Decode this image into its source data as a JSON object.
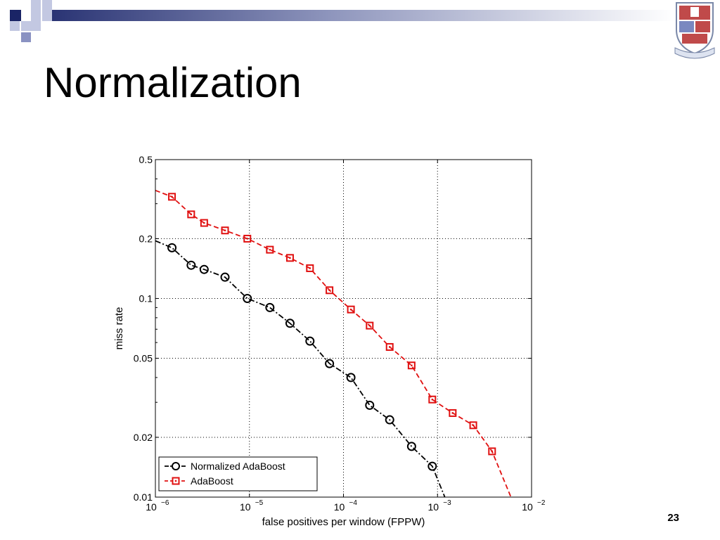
{
  "slide": {
    "title": "Normalization",
    "page_number": "23",
    "accent_color": "#1a2466",
    "deco_icon": "checker-squares-icon",
    "crest_icon": "university-crest-icon"
  },
  "chart_data": {
    "type": "line",
    "xlabel": "false positives per window (FPPW)",
    "ylabel": "miss rate",
    "xscale": "log",
    "yscale": "log",
    "xlim": [
      1e-06,
      0.01
    ],
    "ylim": [
      0.01,
      0.5
    ],
    "x_ticks": [
      {
        "value": 1e-06,
        "base": "10",
        "exp": "−6"
      },
      {
        "value": 1e-05,
        "base": "10",
        "exp": "−5"
      },
      {
        "value": 0.0001,
        "base": "10",
        "exp": "−4"
      },
      {
        "value": 0.001,
        "base": "10",
        "exp": "−3"
      },
      {
        "value": 0.01,
        "base": "10",
        "exp": "−2"
      }
    ],
    "y_ticks": [
      {
        "value": 0.01,
        "label": "0.01"
      },
      {
        "value": 0.02,
        "label": "0.02"
      },
      {
        "value": 0.05,
        "label": "0.05"
      },
      {
        "value": 0.1,
        "label": "0.1"
      },
      {
        "value": 0.2,
        "label": "0.2"
      },
      {
        "value": 0.5,
        "label": "0.5"
      }
    ],
    "grid": true,
    "legend_position": "bottom-left",
    "series": [
      {
        "name": "Normalized AdaBoost",
        "color": "#000000",
        "marker": "circle",
        "line_style": "dash-dot",
        "line_x": [
          1e-06,
          1.5e-06,
          2.4e-06,
          3.3e-06,
          5.5e-06,
          9.5e-06,
          1.65e-05,
          2.7e-05,
          4.4e-05,
          7.1e-05,
          0.00012,
          0.00019,
          0.00031,
          0.00053,
          0.00088,
          0.00125
        ],
        "line_y": [
          0.195,
          0.18,
          0.147,
          0.14,
          0.128,
          0.1,
          0.09,
          0.075,
          0.061,
          0.047,
          0.04,
          0.029,
          0.0245,
          0.018,
          0.0143,
          0.0095
        ],
        "x": [
          1.5e-06,
          2.4e-06,
          3.3e-06,
          5.5e-06,
          9.5e-06,
          1.65e-05,
          2.7e-05,
          4.4e-05,
          7.1e-05,
          0.00012,
          0.00019,
          0.00031,
          0.00053,
          0.00088
        ],
        "y": [
          0.18,
          0.147,
          0.14,
          0.128,
          0.1,
          0.09,
          0.075,
          0.061,
          0.047,
          0.04,
          0.029,
          0.0245,
          0.018,
          0.0143
        ]
      },
      {
        "name": "AdaBoost",
        "color": "#e01010",
        "marker": "square",
        "line_style": "dashed",
        "line_x": [
          1e-06,
          1.5e-06,
          2.4e-06,
          3.3e-06,
          5.5e-06,
          9.5e-06,
          1.65e-05,
          2.7e-05,
          4.4e-05,
          7.1e-05,
          0.00012,
          0.00019,
          0.00031,
          0.00053,
          0.00088,
          0.00145,
          0.0024,
          0.0038,
          0.0062
        ],
        "line_y": [
          0.35,
          0.325,
          0.265,
          0.24,
          0.22,
          0.2,
          0.176,
          0.16,
          0.142,
          0.11,
          0.088,
          0.073,
          0.057,
          0.046,
          0.031,
          0.0265,
          0.023,
          0.017,
          0.0097
        ],
        "x": [
          1.5e-06,
          2.4e-06,
          3.3e-06,
          5.5e-06,
          9.5e-06,
          1.65e-05,
          2.7e-05,
          4.4e-05,
          7.1e-05,
          0.00012,
          0.00019,
          0.00031,
          0.00053,
          0.00088,
          0.00145,
          0.0024,
          0.0038
        ],
        "y": [
          0.325,
          0.265,
          0.24,
          0.22,
          0.2,
          0.176,
          0.16,
          0.142,
          0.11,
          0.088,
          0.073,
          0.057,
          0.046,
          0.031,
          0.0265,
          0.023,
          0.017
        ]
      }
    ]
  }
}
